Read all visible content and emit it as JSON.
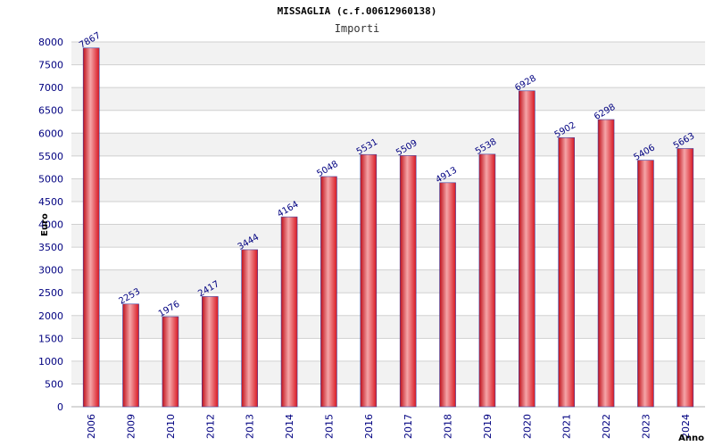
{
  "chart_data": {
    "type": "bar",
    "title": "MISSAGLIA (c.f.00612960138)",
    "subtitle": "Importi",
    "xlabel": "Anno",
    "ylabel": "Euro",
    "ylim": [
      0,
      8000
    ],
    "yticks": [
      0,
      500,
      1000,
      1500,
      2000,
      2500,
      3000,
      3500,
      4000,
      4500,
      5000,
      5500,
      6000,
      6500,
      7000,
      7500,
      8000
    ],
    "categories": [
      "2006",
      "2009",
      "2010",
      "2012",
      "2013",
      "2014",
      "2015",
      "2016",
      "2017",
      "2018",
      "2019",
      "2020",
      "2021",
      "2022",
      "2023",
      "2024"
    ],
    "values": [
      7867,
      2253,
      1976,
      2417,
      3444,
      4164,
      5048,
      5531,
      5509,
      4913,
      5538,
      6928,
      5902,
      6298,
      5406,
      5663
    ],
    "grid": true,
    "legend": "none",
    "colors": {
      "bar": "#e8202a",
      "bar_highlight": "#f4a0a0",
      "bar_edge": "#4040a0",
      "text": "#000080",
      "band": "#f2f2f2",
      "gridline": "#d0d0d0"
    }
  }
}
